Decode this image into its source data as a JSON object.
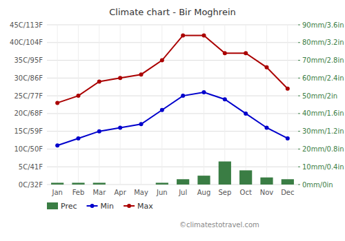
{
  "chart_data": {
    "type": "bar",
    "title": "Climate chart - Bir Moghrein",
    "subtitle": "©climatestotravel.com",
    "categories": [
      "Jan",
      "Feb",
      "Mar",
      "Apr",
      "May",
      "Jun",
      "Jul",
      "Aug",
      "Sep",
      "Oct",
      "Nov",
      "Dec"
    ],
    "series": [
      {
        "name": "Prec",
        "type": "bar",
        "axis": "y2",
        "color": "#3a7d44",
        "values": [
          1,
          1,
          1,
          0,
          0,
          1,
          3,
          5,
          13,
          8,
          4,
          3
        ]
      },
      {
        "name": "Min",
        "type": "line",
        "marker": "circle",
        "color": "#0000cc",
        "values": [
          11,
          13,
          15,
          16,
          17,
          21,
          25,
          26,
          24,
          20,
          16,
          13
        ]
      },
      {
        "name": "Max",
        "type": "line",
        "marker": "circle",
        "color": "#aa0000",
        "values": [
          23,
          25,
          29,
          30,
          31,
          35,
          42,
          42,
          37,
          37,
          33,
          27
        ]
      }
    ],
    "ylim": [
      0,
      45
    ],
    "yticks": [
      {
        "value": 0,
        "label": "0C/32F"
      },
      {
        "value": 5,
        "label": "5C/41F"
      },
      {
        "value": 10,
        "label": "10C/50F"
      },
      {
        "value": 15,
        "label": "15C/59F"
      },
      {
        "value": 20,
        "label": "20C/68F"
      },
      {
        "value": 25,
        "label": "25C/77F"
      },
      {
        "value": 30,
        "label": "30C/86F"
      },
      {
        "value": 35,
        "label": "35C/95F"
      },
      {
        "value": 40,
        "label": "40C/104F"
      },
      {
        "value": 45,
        "label": "45C/113F"
      }
    ],
    "y2lim": [
      0,
      90
    ],
    "y2ticks": [
      {
        "value": 0,
        "label": "0mm/0in"
      },
      {
        "value": 10,
        "label": "10mm/0.4in"
      },
      {
        "value": 20,
        "label": "20mm/0.8in"
      },
      {
        "value": 30,
        "label": "30mm/1.2in"
      },
      {
        "value": 40,
        "label": "40mm/1.6in"
      },
      {
        "value": 50,
        "label": "50mm/2in"
      },
      {
        "value": 60,
        "label": "60mm/2.4in"
      },
      {
        "value": 70,
        "label": "70mm/2.8in"
      },
      {
        "value": 80,
        "label": "80mm/3.2in"
      },
      {
        "value": 90,
        "label": "90mm/3.6in"
      }
    ],
    "grid": true,
    "legend": "bottom"
  }
}
